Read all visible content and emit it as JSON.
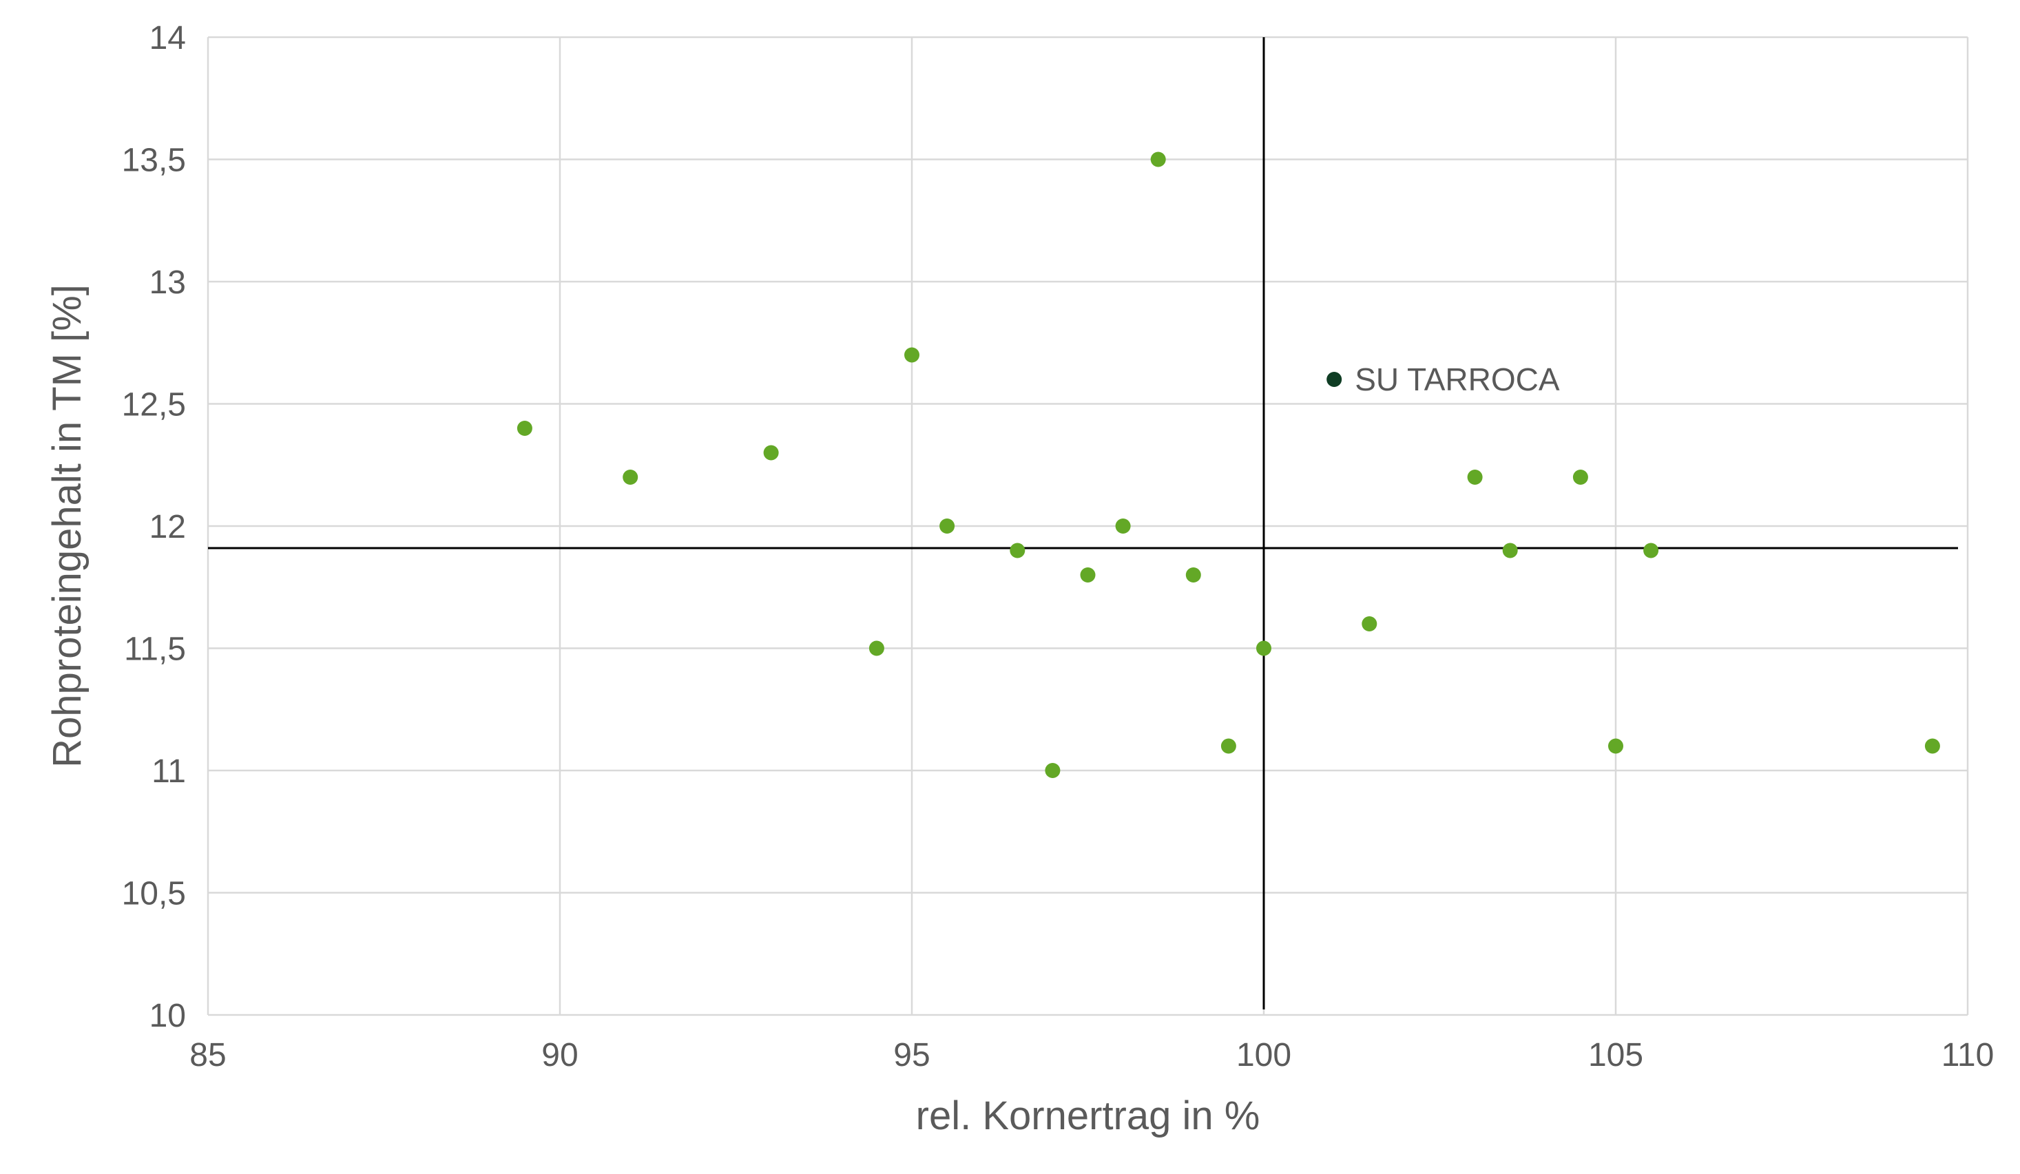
{
  "chart_data": {
    "type": "scatter",
    "title": "",
    "xlabel": "rel. Kornertrag in %",
    "ylabel": "Rohproteingehalt in TM [%]",
    "xlim": [
      85,
      110
    ],
    "ylim": [
      10,
      14
    ],
    "x_ticks": [
      "85",
      "90",
      "95",
      "100",
      "105",
      "110"
    ],
    "y_ticks": [
      "10",
      "10,5",
      "11",
      "11,5",
      "12",
      "12,5",
      "13",
      "13,5",
      "14"
    ],
    "grid": true,
    "reference_lines": {
      "vertical_x": 100,
      "horizontal_y": 11.91
    },
    "colors": {
      "points": "#63a826",
      "highlight": "#0f3d24",
      "grid": "#d9d9d9",
      "reference": "#000000",
      "text": "#5a5a5a"
    },
    "series": [
      {
        "points": [
          {
            "x": 89.5,
            "y": 12.4
          },
          {
            "x": 91.0,
            "y": 12.2
          },
          {
            "x": 93.0,
            "y": 12.3
          },
          {
            "x": 94.5,
            "y": 11.5
          },
          {
            "x": 95.0,
            "y": 12.7
          },
          {
            "x": 95.5,
            "y": 12.0
          },
          {
            "x": 96.5,
            "y": 11.9
          },
          {
            "x": 97.0,
            "y": 11.0
          },
          {
            "x": 97.5,
            "y": 11.8
          },
          {
            "x": 98.0,
            "y": 12.0
          },
          {
            "x": 98.5,
            "y": 13.5
          },
          {
            "x": 99.0,
            "y": 11.8
          },
          {
            "x": 99.5,
            "y": 11.1
          },
          {
            "x": 100.0,
            "y": 11.5
          },
          {
            "x": 101.5,
            "y": 11.6
          },
          {
            "x": 103.0,
            "y": 12.2
          },
          {
            "x": 103.5,
            "y": 11.9
          },
          {
            "x": 104.5,
            "y": 12.2
          },
          {
            "x": 105.0,
            "y": 11.1
          },
          {
            "x": 105.5,
            "y": 11.9
          },
          {
            "x": 109.5,
            "y": 11.1
          }
        ]
      },
      {
        "points": [
          {
            "x": 101.0,
            "y": 12.6,
            "label": "SU TARROCA"
          }
        ]
      }
    ]
  }
}
